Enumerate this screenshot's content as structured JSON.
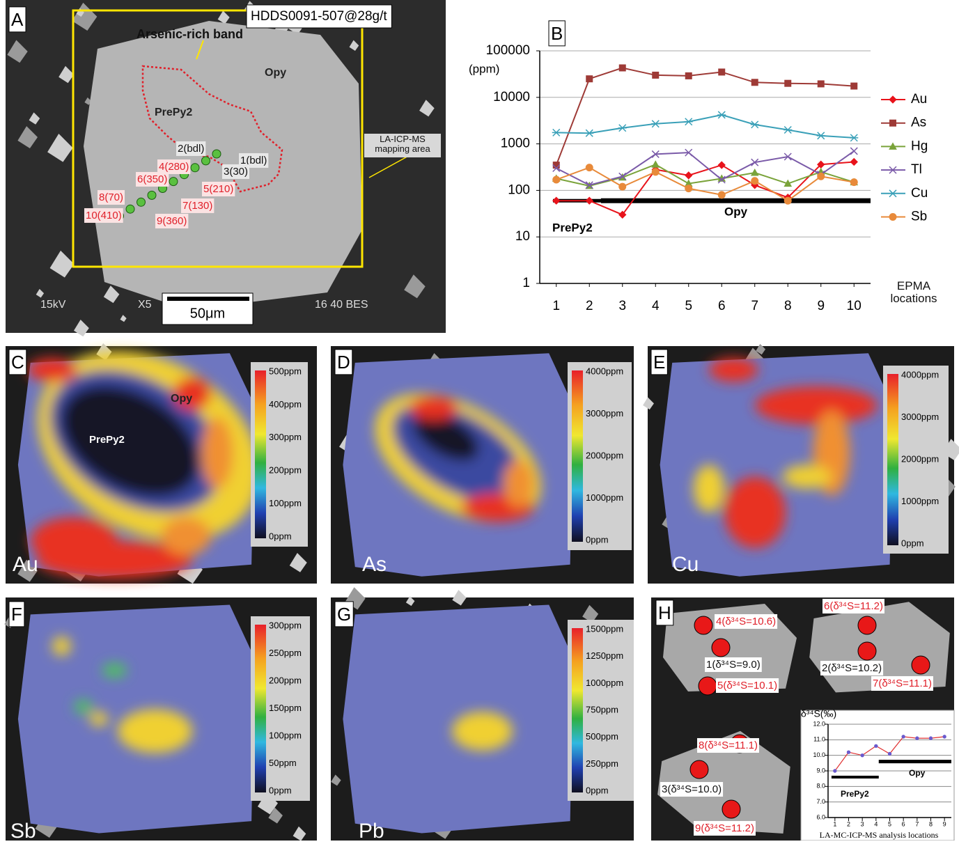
{
  "panels": {
    "A": {
      "label": "A",
      "sample": "HDDS0091-507@28g/t",
      "band": "Arsenic-rich band",
      "opy": "Opy",
      "prepy": "PrePy2",
      "mapping_area": "LA-ICP-MS mapping area",
      "scale_bar": "50μm",
      "sem_left": "15kV",
      "sem_mid": "X5",
      "sem_right": "16 40 BES",
      "spots": [
        "1(bdl)",
        "2(bdl)",
        "3(30)",
        "4(280)",
        "5(210)",
        "6(350)",
        "7(130)",
        "8(70)",
        "9(360)",
        "10(410)"
      ]
    },
    "C": {
      "label": "C",
      "element": "Au",
      "opy": "Opy",
      "prepy": "PrePy2",
      "scale": [
        "500ppm",
        "400ppm",
        "300ppm",
        "200ppm",
        "100ppm",
        "0ppm"
      ]
    },
    "D": {
      "label": "D",
      "element": "As",
      "scale": [
        "4000ppm",
        "3000ppm",
        "2000ppm",
        "1000ppm",
        "0ppm"
      ]
    },
    "E": {
      "label": "E",
      "element": "Cu",
      "scale": [
        "4000ppm",
        "3000ppm",
        "2000ppm",
        "1000ppm",
        "0ppm"
      ]
    },
    "F": {
      "label": "F",
      "element": "Sb",
      "scale": [
        "300ppm",
        "250ppm",
        "200ppm",
        "150ppm",
        "100ppm",
        "50ppm",
        "0ppm"
      ]
    },
    "G": {
      "label": "G",
      "element": "Pb",
      "scale": [
        "1500ppm",
        "1250ppm",
        "1000ppm",
        "750ppm",
        "500ppm",
        "250ppm",
        "0ppm"
      ]
    },
    "H": {
      "label": "H",
      "spots": [
        "4(δ³⁴S=10.6)",
        "1(δ³⁴S=9.0)",
        "5(δ³⁴S=10.1)",
        "6(δ³⁴S=11.2)",
        "2(δ³⁴S=10.2)",
        "7(δ³⁴S=11.1)",
        "8(δ³⁴S=11.1)",
        "3(δ³⁴S=10.0)",
        "9(δ³⁴S=11.2)"
      ]
    }
  },
  "chart_data": [
    {
      "type": "line",
      "panel_label": "B",
      "y_unit": "(ppm)",
      "xlabel": "EPMA locations",
      "x": [
        1,
        2,
        3,
        4,
        5,
        6,
        7,
        8,
        9,
        10
      ],
      "xlim": [
        0.5,
        10.5
      ],
      "xticks": [
        1,
        2,
        3,
        4,
        5,
        6,
        7,
        8,
        9,
        10
      ],
      "ylim": [
        1,
        100000
      ],
      "yticks": [
        1,
        10,
        100,
        1000,
        10000,
        100000
      ],
      "log_scale": true,
      "grid": true,
      "legend": "right",
      "series": [
        {
          "name": "Au",
          "color": "#e8131b",
          "marker": "diamond",
          "values": [
            60,
            60,
            30,
            280,
            210,
            350,
            130,
            70,
            360,
            410
          ]
        },
        {
          "name": "As",
          "color": "#9e3a36",
          "marker": "square",
          "values": [
            350,
            25000,
            43000,
            30000,
            29000,
            35000,
            21000,
            20000,
            19500,
            17500
          ]
        },
        {
          "name": "Hg",
          "color": "#7aa33a",
          "marker": "triangle",
          "values": [
            180,
            125,
            190,
            360,
            140,
            180,
            240,
            140,
            250,
            150
          ]
        },
        {
          "name": "Tl",
          "color": "#7a5aa8",
          "marker": "x",
          "values": [
            300,
            130,
            200,
            600,
            650,
            170,
            400,
            530,
            220,
            700
          ]
        },
        {
          "name": "Cu",
          "color": "#3aa0b8",
          "marker": "star",
          "values": [
            1750,
            1700,
            2200,
            2700,
            3000,
            4200,
            2600,
            2000,
            1500,
            1350
          ]
        },
        {
          "name": "Sb",
          "color": "#e88a3a",
          "marker": "circle",
          "values": [
            170,
            310,
            120,
            250,
            110,
            80,
            160,
            60,
            200,
            150
          ]
        }
      ],
      "annotations": [
        "PrePy2",
        "Opy"
      ]
    },
    {
      "type": "line",
      "ylabel": "δ³⁴S(‰)",
      "xlabel": "LA-MC-ICP-MS analysis locations",
      "x": [
        1,
        2,
        3,
        4,
        5,
        6,
        7,
        8,
        9
      ],
      "xlim": [
        0.5,
        9.5
      ],
      "xticks": [
        1,
        2,
        3,
        4,
        5,
        6,
        7,
        8,
        9
      ],
      "ylim": [
        6,
        12
      ],
      "yticks": [
        {
          "value": 6,
          "label": "6.0"
        },
        {
          "value": 7,
          "label": "7.0"
        },
        {
          "value": 8,
          "label": "8.0"
        },
        {
          "value": 9,
          "label": "9.0"
        },
        {
          "value": 10,
          "label": "10.0"
        },
        {
          "value": 11,
          "label": "11.0"
        },
        {
          "value": 12,
          "label": "12.0"
        }
      ],
      "log_scale": false,
      "grid": true,
      "series": [
        {
          "color": "#e03030",
          "marker": "dot",
          "marker_color": "#6a5acd",
          "values": [
            9.0,
            10.2,
            10.0,
            10.6,
            10.1,
            11.2,
            11.1,
            11.1,
            11.2
          ]
        }
      ],
      "annotations": [
        "PrePy2",
        "Opy"
      ]
    }
  ]
}
